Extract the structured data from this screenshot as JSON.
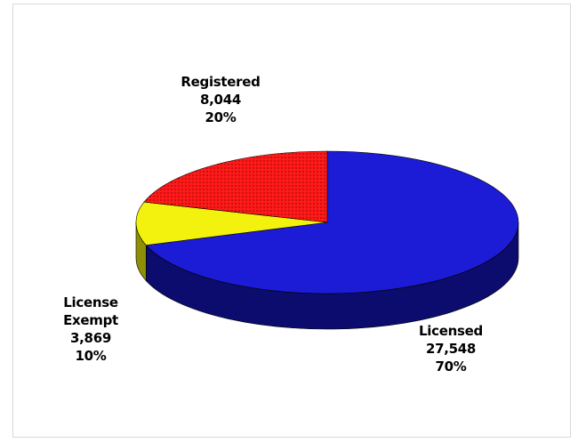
{
  "chart_data": {
    "type": "pie",
    "style": "3d",
    "title": "",
    "slices": [
      {
        "label": "Licensed",
        "value": 27548,
        "value_text": "27,548",
        "percent_text": "70%",
        "color": "#1c1cd6",
        "side_color": "#0c0c6e"
      },
      {
        "label": "License Exempt",
        "value": 3869,
        "value_text": "3,869",
        "percent_text": "10%",
        "color": "#f2f20e",
        "side_color": "#8f8f07",
        "label_lines": [
          "License",
          "Exempt"
        ]
      },
      {
        "label": "Registered",
        "value": 8044,
        "value_text": "8,044",
        "percent_text": "20%",
        "color": "#ff1a1a",
        "side_color": "#8a0b0b",
        "pattern": "dots"
      }
    ],
    "legend": "none"
  }
}
